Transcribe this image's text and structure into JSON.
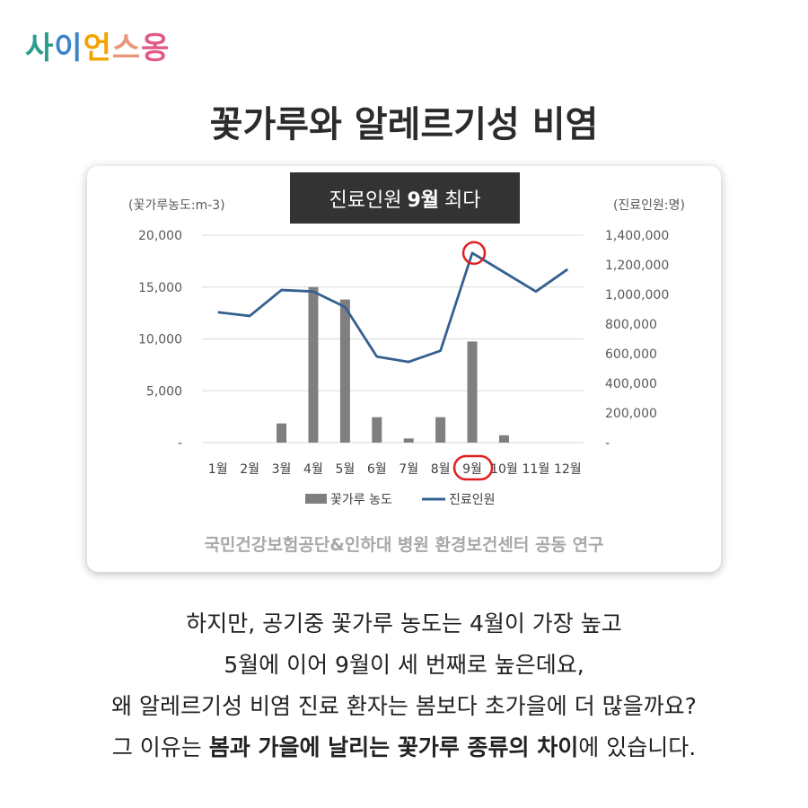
{
  "logo": {
    "chars": [
      "사",
      "이",
      "언",
      "스",
      "옹"
    ],
    "colors": [
      "#2a9d8f",
      "#3a86c8",
      "#f4a300",
      "#e9967a",
      "#e05a8a"
    ]
  },
  "title": "꽃가루와 알레르기성 비염",
  "badge": {
    "pre": "진료인원",
    "bold": "9월",
    "post": "최다"
  },
  "source": "국민건강보험공단&인하대 병원 환경보건센터 공동 연구",
  "chart_data": {
    "type": "bar+line",
    "categories": [
      "1월",
      "2월",
      "3월",
      "4월",
      "5월",
      "6월",
      "7월",
      "8월",
      "9월",
      "10월",
      "11월",
      "12월"
    ],
    "left_axis": {
      "label": "(꽃가루농도:m-3)",
      "ylim": [
        0,
        20000
      ],
      "ticks": [
        "-",
        "5,000",
        "10,000",
        "15,000",
        "20,000"
      ],
      "tick_values": [
        0,
        5000,
        10000,
        15000,
        20000
      ]
    },
    "right_axis": {
      "label": "(진료인원:명)",
      "ylim": [
        0,
        1400000
      ],
      "ticks": [
        "-",
        "200,000",
        "400,000",
        "600,000",
        "800,000",
        "1,000,000",
        "1,200,000",
        "1,400,000"
      ],
      "tick_values": [
        0,
        200000,
        400000,
        600000,
        800000,
        1000000,
        1200000,
        1400000
      ]
    },
    "series": [
      {
        "name": "꽃가루 농도",
        "kind": "bar",
        "axis": "left",
        "color": "#7f7f7f",
        "values": [
          0,
          0,
          1850,
          15000,
          13800,
          2450,
          400,
          2450,
          9750,
          700,
          0,
          0
        ]
      },
      {
        "name": "진료인원",
        "kind": "line",
        "axis": "right",
        "color": "#35608f",
        "values": [
          880000,
          855000,
          1030000,
          1020000,
          915000,
          580000,
          545000,
          620000,
          1280000,
          1150000,
          1020000,
          1170000
        ]
      }
    ],
    "highlight": {
      "category": "9월",
      "color": "#e02020"
    },
    "grid": true,
    "legend": "bottom"
  },
  "body": {
    "line1": "하지만, 공기중 꽃가루 농도는 4월이 가장 높고",
    "line2": "5월에 이어 9월이 세 번째로 높은데요,",
    "line3": "왜 알레르기성 비염 진료 환자는 봄보다 초가을에 더 많을까요?",
    "line4_pre": "그 이유는 ",
    "line4_bold": "봄과 가을에 날리는 꽃가루 종류의 차이",
    "line4_post": "에 있습니다."
  }
}
